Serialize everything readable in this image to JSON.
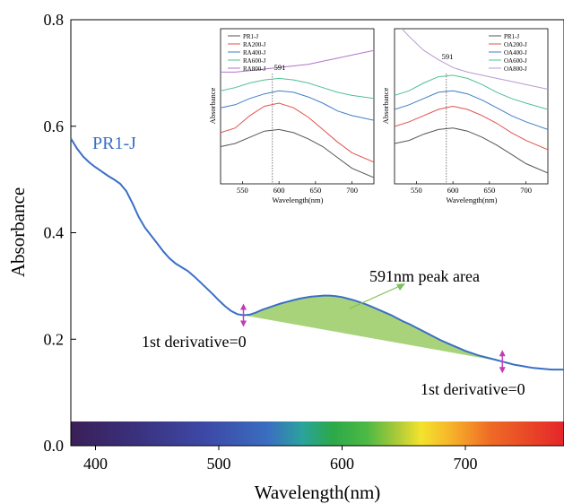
{
  "chart_data": {
    "type": "line",
    "main": {
      "xlabel": "Wavelength(nm)",
      "ylabel": "Absorbance",
      "xlim": [
        380,
        780
      ],
      "ylim": [
        0.0,
        0.8
      ],
      "xticks": [
        400,
        500,
        600,
        700
      ],
      "yticks": [
        0.0,
        0.2,
        0.4,
        0.6,
        0.8
      ],
      "xtick_labels": [
        "400",
        "500",
        "600",
        "700"
      ],
      "ytick_labels": [
        "0.0",
        "0.2",
        "0.4",
        "0.6",
        "0.8"
      ],
      "series": [
        {
          "name": "PR1-J",
          "color": "#3a6fc6",
          "points": [
            [
              380,
              0.577
            ],
            [
              385,
              0.558
            ],
            [
              390,
              0.543
            ],
            [
              395,
              0.532
            ],
            [
              400,
              0.523
            ],
            [
              405,
              0.515
            ],
            [
              410,
              0.507
            ],
            [
              415,
              0.5
            ],
            [
              420,
              0.492
            ],
            [
              425,
              0.478
            ],
            [
              430,
              0.455
            ],
            [
              435,
              0.43
            ],
            [
              440,
              0.41
            ],
            [
              445,
              0.395
            ],
            [
              450,
              0.38
            ],
            [
              455,
              0.365
            ],
            [
              460,
              0.352
            ],
            [
              465,
              0.342
            ],
            [
              470,
              0.335
            ],
            [
              475,
              0.328
            ],
            [
              480,
              0.318
            ],
            [
              485,
              0.307
            ],
            [
              490,
              0.296
            ],
            [
              495,
              0.285
            ],
            [
              500,
              0.273
            ],
            [
              505,
              0.262
            ],
            [
              510,
              0.253
            ],
            [
              515,
              0.247
            ],
            [
              520,
              0.245
            ],
            [
              525,
              0.246
            ],
            [
              530,
              0.25
            ],
            [
              535,
              0.255
            ],
            [
              540,
              0.259
            ],
            [
              545,
              0.263
            ],
            [
              550,
              0.267
            ],
            [
              555,
              0.27
            ],
            [
              560,
              0.273
            ],
            [
              565,
              0.276
            ],
            [
              570,
              0.278
            ],
            [
              575,
              0.28
            ],
            [
              580,
              0.281
            ],
            [
              585,
              0.282
            ],
            [
              590,
              0.282
            ],
            [
              595,
              0.281
            ],
            [
              600,
              0.279
            ],
            [
              605,
              0.276
            ],
            [
              610,
              0.273
            ],
            [
              615,
              0.269
            ],
            [
              620,
              0.265
            ],
            [
              625,
              0.26
            ],
            [
              630,
              0.255
            ],
            [
              635,
              0.25
            ],
            [
              640,
              0.245
            ],
            [
              645,
              0.239
            ],
            [
              650,
              0.233
            ],
            [
              655,
              0.228
            ],
            [
              660,
              0.222
            ],
            [
              665,
              0.216
            ],
            [
              670,
              0.21
            ],
            [
              675,
              0.204
            ],
            [
              680,
              0.198
            ],
            [
              685,
              0.193
            ],
            [
              690,
              0.188
            ],
            [
              695,
              0.183
            ],
            [
              700,
              0.178
            ],
            [
              705,
              0.174
            ],
            [
              710,
              0.17
            ],
            [
              715,
              0.167
            ],
            [
              720,
              0.164
            ],
            [
              725,
              0.161
            ],
            [
              730,
              0.158
            ],
            [
              735,
              0.155
            ],
            [
              740,
              0.152
            ],
            [
              745,
              0.15
            ],
            [
              750,
              0.148
            ],
            [
              755,
              0.146
            ],
            [
              760,
              0.145
            ],
            [
              765,
              0.144
            ],
            [
              770,
              0.143
            ],
            [
              775,
              0.143
            ],
            [
              780,
              0.143
            ]
          ]
        }
      ],
      "series_label": "PR1-J",
      "peak_area": {
        "label": "591nm peak area",
        "start_x": 520,
        "end_x": 730,
        "fill": "#a8d37a"
      },
      "markers": [
        {
          "x": 520,
          "y": 0.245,
          "label": "1st derivative=0"
        },
        {
          "x": 730,
          "y": 0.158,
          "label": "1st derivative=0"
        }
      ],
      "colorbar_range": [
        380,
        780
      ]
    },
    "insets": [
      {
        "xlabel": "Wavelength(nm)",
        "ylabel": "Absorbance",
        "xlim": [
          520,
          730
        ],
        "xticks": [
          550,
          600,
          650,
          700
        ],
        "xtick_labels": [
          "550",
          "600",
          "650",
          "700"
        ],
        "ylim": [
          0,
          1
        ],
        "peak_x": 591,
        "peak_label": "591",
        "legend": [
          "PR1-J",
          "RA200-J",
          "RA400-J",
          "RA600-J",
          "RA800-J"
        ],
        "series": [
          {
            "name": "PR1-J",
            "color": "#555555",
            "points": [
              [
                520,
                0.24
              ],
              [
                540,
                0.26
              ],
              [
                560,
                0.3
              ],
              [
                580,
                0.34
              ],
              [
                600,
                0.35
              ],
              [
                620,
                0.33
              ],
              [
                640,
                0.29
              ],
              [
                660,
                0.24
              ],
              [
                680,
                0.17
              ],
              [
                700,
                0.1
              ],
              [
                730,
                0.04
              ]
            ]
          },
          {
            "name": "RA200-J",
            "color": "#e2514c",
            "points": [
              [
                520,
                0.33
              ],
              [
                540,
                0.36
              ],
              [
                560,
                0.44
              ],
              [
                580,
                0.5
              ],
              [
                600,
                0.52
              ],
              [
                620,
                0.49
              ],
              [
                640,
                0.43
              ],
              [
                660,
                0.35
              ],
              [
                680,
                0.27
              ],
              [
                700,
                0.2
              ],
              [
                730,
                0.14
              ]
            ]
          },
          {
            "name": "RA400-J",
            "color": "#3f7ec7",
            "points": [
              [
                520,
                0.49
              ],
              [
                540,
                0.51
              ],
              [
                560,
                0.55
              ],
              [
                580,
                0.58
              ],
              [
                600,
                0.6
              ],
              [
                620,
                0.59
              ],
              [
                640,
                0.56
              ],
              [
                660,
                0.52
              ],
              [
                680,
                0.47
              ],
              [
                700,
                0.44
              ],
              [
                730,
                0.41
              ]
            ]
          },
          {
            "name": "RA600-J",
            "color": "#4fbf96",
            "points": [
              [
                520,
                0.6
              ],
              [
                540,
                0.62
              ],
              [
                560,
                0.65
              ],
              [
                580,
                0.67
              ],
              [
                600,
                0.68
              ],
              [
                620,
                0.67
              ],
              [
                640,
                0.65
              ],
              [
                660,
                0.62
              ],
              [
                680,
                0.59
              ],
              [
                700,
                0.57
              ],
              [
                730,
                0.55
              ]
            ]
          },
          {
            "name": "RA800-J",
            "color": "#b374c9",
            "points": [
              [
                520,
                0.72
              ],
              [
                540,
                0.72
              ],
              [
                560,
                0.73
              ],
              [
                580,
                0.74
              ],
              [
                600,
                0.75
              ],
              [
                620,
                0.76
              ],
              [
                640,
                0.77
              ],
              [
                660,
                0.79
              ],
              [
                680,
                0.81
              ],
              [
                700,
                0.83
              ],
              [
                730,
                0.86
              ]
            ]
          }
        ]
      },
      {
        "xlabel": "Wavelength(nm)",
        "ylabel": "Absorbance",
        "xlim": [
          520,
          730
        ],
        "xticks": [
          550,
          600,
          650,
          700
        ],
        "xtick_labels": [
          "550",
          "600",
          "650",
          "700"
        ],
        "ylim": [
          0,
          1
        ],
        "peak_x": 591,
        "peak_label": "591",
        "legend": [
          "PR1-J",
          "OA200-J",
          "OA400-J",
          "OA600-J",
          "OA800-J"
        ],
        "series": [
          {
            "name": "PR1-J",
            "color": "#555555",
            "points": [
              [
                520,
                0.26
              ],
              [
                540,
                0.28
              ],
              [
                560,
                0.32
              ],
              [
                580,
                0.35
              ],
              [
                600,
                0.36
              ],
              [
                620,
                0.34
              ],
              [
                640,
                0.3
              ],
              [
                660,
                0.25
              ],
              [
                680,
                0.19
              ],
              [
                700,
                0.13
              ],
              [
                730,
                0.07
              ]
            ]
          },
          {
            "name": "OA200-J",
            "color": "#e2514c",
            "points": [
              [
                520,
                0.37
              ],
              [
                540,
                0.4
              ],
              [
                560,
                0.44
              ],
              [
                580,
                0.48
              ],
              [
                600,
                0.5
              ],
              [
                620,
                0.48
              ],
              [
                640,
                0.44
              ],
              [
                660,
                0.39
              ],
              [
                680,
                0.33
              ],
              [
                700,
                0.28
              ],
              [
                730,
                0.22
              ]
            ]
          },
          {
            "name": "OA400-J",
            "color": "#3f7ec7",
            "points": [
              [
                520,
                0.48
              ],
              [
                540,
                0.51
              ],
              [
                560,
                0.55
              ],
              [
                580,
                0.59
              ],
              [
                600,
                0.6
              ],
              [
                620,
                0.58
              ],
              [
                640,
                0.54
              ],
              [
                660,
                0.49
              ],
              [
                680,
                0.44
              ],
              [
                700,
                0.4
              ],
              [
                730,
                0.35
              ]
            ]
          },
          {
            "name": "OA600-J",
            "color": "#4fbf96",
            "points": [
              [
                520,
                0.57
              ],
              [
                540,
                0.6
              ],
              [
                560,
                0.65
              ],
              [
                580,
                0.69
              ],
              [
                600,
                0.7
              ],
              [
                620,
                0.68
              ],
              [
                640,
                0.64
              ],
              [
                660,
                0.59
              ],
              [
                680,
                0.55
              ],
              [
                700,
                0.52
              ],
              [
                730,
                0.48
              ]
            ]
          },
          {
            "name": "OA800-J",
            "color": "#b99ad0",
            "points": [
              [
                520,
                1.05
              ],
              [
                540,
                0.95
              ],
              [
                560,
                0.86
              ],
              [
                580,
                0.8
              ],
              [
                600,
                0.75
              ],
              [
                620,
                0.72
              ],
              [
                640,
                0.7
              ],
              [
                660,
                0.68
              ],
              [
                680,
                0.66
              ],
              [
                700,
                0.64
              ],
              [
                730,
                0.61
              ]
            ]
          }
        ]
      }
    ]
  }
}
